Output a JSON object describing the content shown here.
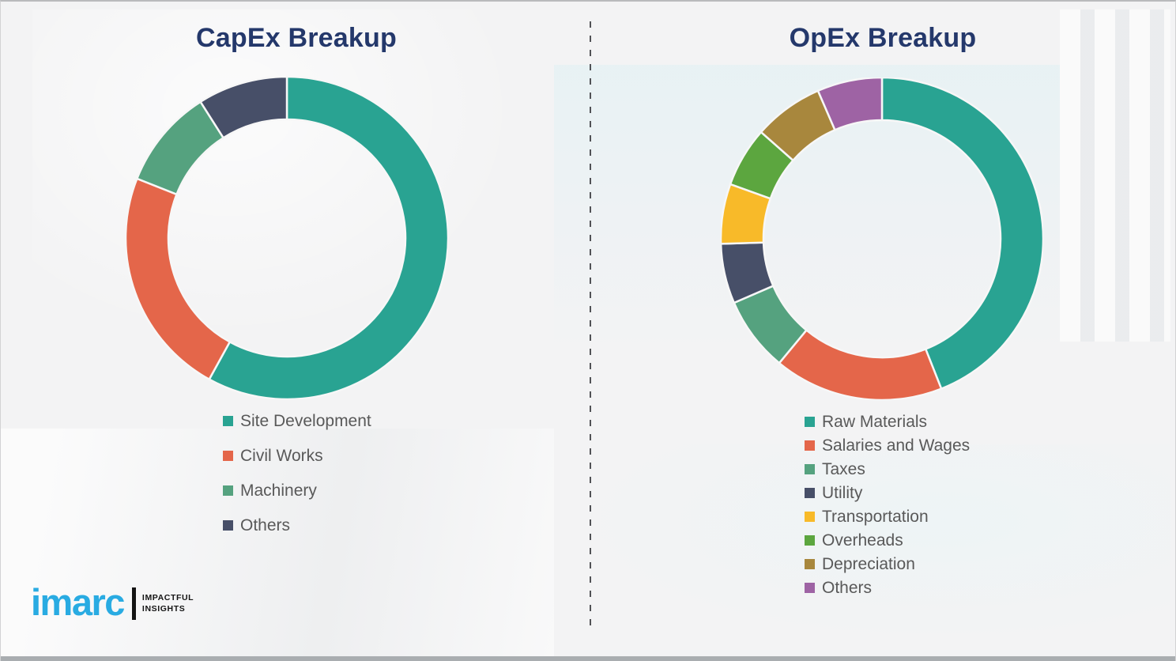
{
  "style": {
    "title_color": "#24386B",
    "legend_text_color": "#595959",
    "background_color": "#f3f3f4",
    "divider_color": "#515256",
    "logo_color": "#29ABE2"
  },
  "chart_data": [
    {
      "type": "pie",
      "subtype": "donut",
      "title": "CapEx Breakup",
      "labels": [
        "Site Development",
        "Civil Works",
        "Machinery",
        "Others"
      ],
      "values": [
        58,
        23,
        10,
        9
      ],
      "colors": [
        "#29A392",
        "#E4664A",
        "#55A27F",
        "#474F68"
      ],
      "start_angle_deg": 0,
      "direction": "clockwise",
      "outer_radius": 204,
      "inner_radius": 150,
      "legend_position": "below-left",
      "data_labels": false
    },
    {
      "type": "pie",
      "subtype": "donut",
      "title": "OpEx Breakup",
      "labels": [
        "Raw Materials",
        "Salaries and Wages",
        "Taxes",
        "Utility",
        "Transportation",
        "Overheads",
        "Depreciation",
        "Others"
      ],
      "values": [
        44,
        17,
        7.5,
        6,
        6,
        6,
        7,
        6.5
      ],
      "colors": [
        "#29A392",
        "#E4664A",
        "#55A27F",
        "#474F68",
        "#F8BA29",
        "#5CA63F",
        "#A8873D",
        "#9E63A4"
      ],
      "start_angle_deg": 0,
      "direction": "clockwise",
      "outer_radius": 204,
      "inner_radius": 150,
      "legend_position": "below-left",
      "data_labels": false
    }
  ],
  "branding": {
    "logo_text": "imarc",
    "tagline_line1": "IMPACTFUL",
    "tagline_line2": "INSIGHTS"
  }
}
